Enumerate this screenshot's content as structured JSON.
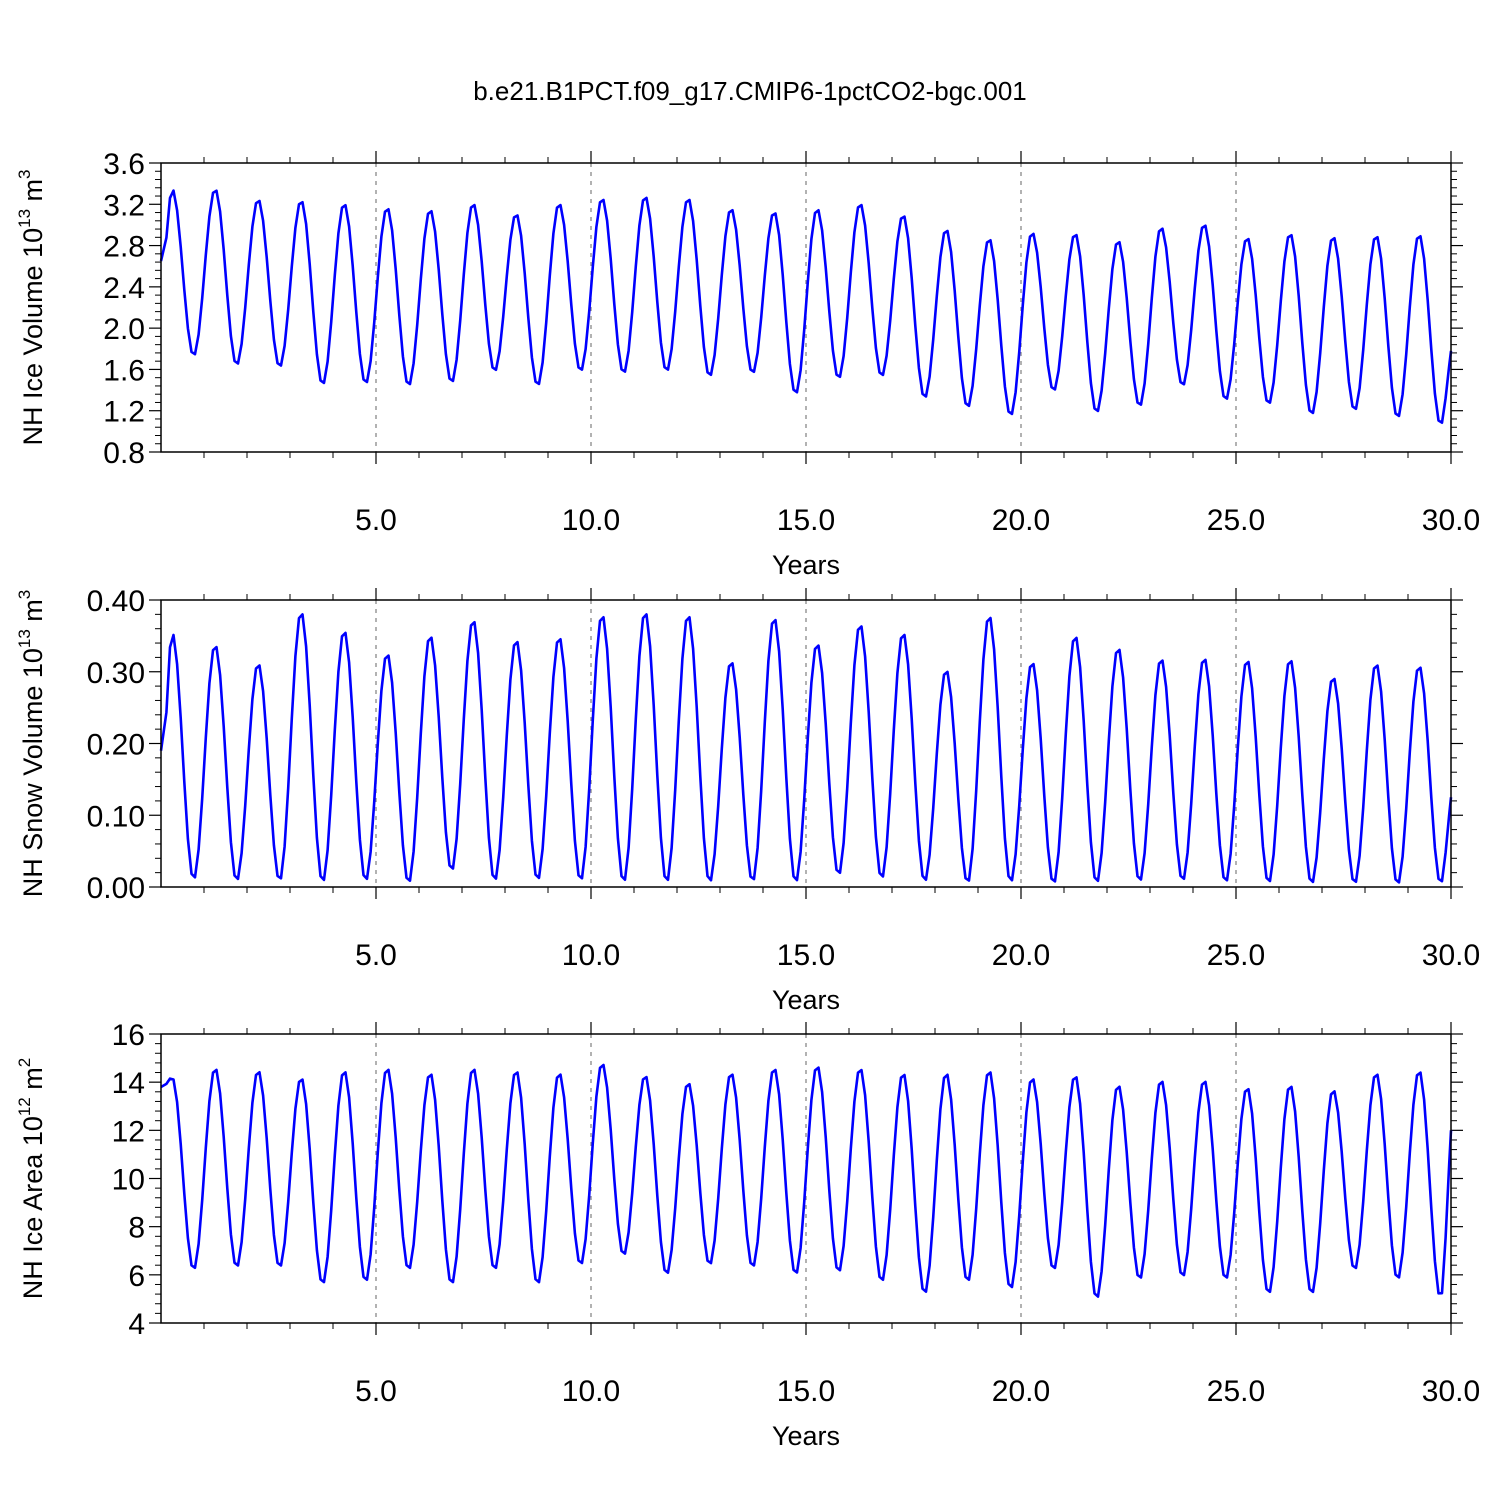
{
  "title": "b.e21.B1PCT.f09_g17.CMIP6-1pctCO2-bgc.001",
  "colors": {
    "series": "#0000ff",
    "grid": "#888888",
    "axis": "#000000"
  },
  "chart_data": [
    {
      "type": "line",
      "ylabel_parts": {
        "prefix": "NH Ice Volume 10",
        "exponent": "13",
        "suffix": " m",
        "unit_exponent": "3"
      },
      "xlabel": "Years",
      "xlim": [
        0,
        30
      ],
      "ylim": [
        0.8,
        3.6
      ],
      "xticks": [
        5,
        10,
        15,
        20,
        25,
        30
      ],
      "xtick_labels": [
        "5.0",
        "10.0",
        "15.0",
        "20.0",
        "25.0",
        "30.0"
      ],
      "yticks": [
        0.8,
        1.2,
        1.6,
        2.0,
        2.4,
        2.8,
        3.2,
        3.6
      ],
      "ytick_labels": [
        "0.8",
        "1.2",
        "1.6",
        "2.0",
        "2.4",
        "2.8",
        "3.2",
        "3.6"
      ],
      "vgrid": [
        5,
        10,
        15,
        20,
        25
      ],
      "series": [
        {
          "cycle_start": 2.65,
          "annual_max": [
            3.35,
            3.35,
            3.25,
            3.24,
            3.21,
            3.17,
            3.15,
            3.21,
            3.11,
            3.21,
            3.26,
            3.28,
            3.26,
            3.16,
            3.13,
            3.16,
            3.21,
            3.1,
            2.96,
            2.87,
            2.93,
            2.92,
            2.85,
            2.98,
            3.01,
            2.88,
            2.92,
            2.89,
            2.9,
            2.91
          ],
          "annual_min": [
            1.73,
            1.64,
            1.62,
            1.45,
            1.46,
            1.44,
            1.47,
            1.58,
            1.44,
            1.58,
            1.56,
            1.58,
            1.53,
            1.56,
            1.36,
            1.51,
            1.53,
            1.32,
            1.23,
            1.15,
            1.39,
            1.18,
            1.24,
            1.44,
            1.3,
            1.26,
            1.16,
            1.2,
            1.13,
            1.06
          ],
          "end_value": 1.78
        }
      ]
    },
    {
      "type": "line",
      "ylabel_parts": {
        "prefix": "NH Snow Volume 10",
        "exponent": "13",
        "suffix": " m",
        "unit_exponent": "3"
      },
      "xlabel": "Years",
      "xlim": [
        0,
        30
      ],
      "ylim": [
        0.0,
        0.4
      ],
      "xticks": [
        5,
        10,
        15,
        20,
        25,
        30
      ],
      "xtick_labels": [
        "5.0",
        "10.0",
        "15.0",
        "20.0",
        "25.0",
        "30.0"
      ],
      "yticks": [
        0.0,
        0.1,
        0.2,
        0.3,
        0.4
      ],
      "ytick_labels": [
        "0.00",
        "0.10",
        "0.20",
        "0.30",
        "0.40"
      ],
      "vgrid": [
        5,
        10,
        15,
        20,
        25
      ],
      "series": [
        {
          "cycle_start": 0.19,
          "annual_max": [
            0.355,
            0.338,
            0.312,
            0.384,
            0.358,
            0.326,
            0.351,
            0.373,
            0.345,
            0.349,
            0.38,
            0.384,
            0.38,
            0.315,
            0.376,
            0.34,
            0.367,
            0.355,
            0.303,
            0.379,
            0.314,
            0.351,
            0.334,
            0.319,
            0.32,
            0.317,
            0.318,
            0.293,
            0.312,
            0.309
          ],
          "annual_min": [
            0.01,
            0.008,
            0.008,
            0.006,
            0.008,
            0.005,
            0.022,
            0.008,
            0.009,
            0.008,
            0.006,
            0.006,
            0.006,
            0.007,
            0.006,
            0.016,
            0.011,
            0.007,
            0.005,
            0.006,
            0.004,
            0.005,
            0.007,
            0.008,
            0.006,
            0.005,
            0.004,
            0.004,
            0.003,
            0.004
          ],
          "end_value": 0.125
        }
      ]
    },
    {
      "type": "line",
      "ylabel_parts": {
        "prefix": "NH Ice Area 10",
        "exponent": "12",
        "suffix": " m",
        "unit_exponent": "2"
      },
      "xlabel": "Years",
      "xlim": [
        0,
        30
      ],
      "ylim": [
        4,
        16
      ],
      "xticks": [
        5,
        10,
        15,
        20,
        25,
        30
      ],
      "xtick_labels": [
        "5.0",
        "10.0",
        "15.0",
        "20.0",
        "25.0",
        "30.0"
      ],
      "yticks": [
        4,
        6,
        8,
        10,
        12,
        14,
        16
      ],
      "ytick_labels": [
        "4",
        "6",
        "8",
        "10",
        "12",
        "14",
        "16"
      ],
      "vgrid": [
        5,
        10,
        15,
        20,
        25
      ],
      "series": [
        {
          "cycle_start": 13.8,
          "annual_max": [
            14.2,
            14.6,
            14.5,
            14.2,
            14.5,
            14.6,
            14.4,
            14.6,
            14.5,
            14.4,
            14.8,
            14.3,
            14.0,
            14.4,
            14.6,
            14.7,
            14.6,
            14.4,
            14.4,
            14.5,
            14.2,
            14.3,
            13.9,
            14.1,
            14.1,
            13.8,
            13.9,
            13.7,
            14.4,
            14.5
          ],
          "annual_min": [
            6.2,
            6.3,
            6.3,
            5.6,
            5.7,
            6.2,
            5.6,
            6.2,
            5.6,
            6.4,
            6.8,
            6.0,
            6.4,
            6.3,
            6.0,
            6.1,
            5.7,
            5.2,
            5.7,
            5.4,
            6.2,
            5.0,
            5.8,
            5.9,
            5.8,
            5.2,
            5.2,
            6.2,
            5.8,
            5.0
          ],
          "end_value": 12.0
        }
      ]
    }
  ]
}
